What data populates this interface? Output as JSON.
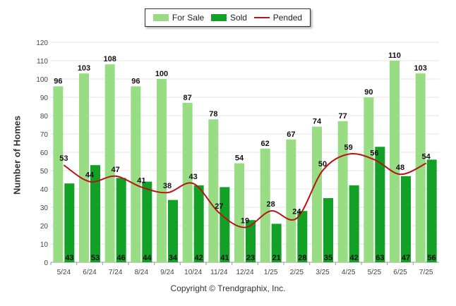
{
  "chart_data": {
    "type": "bar",
    "categories": [
      "5/24",
      "6/24",
      "7/24",
      "8/24",
      "9/24",
      "10/24",
      "11/24",
      "12/24",
      "1/25",
      "2/25",
      "3/25",
      "4/25",
      "5/25",
      "6/25",
      "7/25"
    ],
    "series": [
      {
        "name": "For Sale",
        "type": "bar",
        "color": "#98dc84",
        "values": [
          96,
          103,
          108,
          96,
          100,
          87,
          78,
          54,
          62,
          67,
          74,
          77,
          90,
          110,
          103
        ]
      },
      {
        "name": "Sold",
        "type": "bar",
        "color": "#12a126",
        "values": [
          43,
          53,
          46,
          44,
          34,
          42,
          41,
          23,
          21,
          28,
          35,
          42,
          63,
          47,
          56
        ]
      },
      {
        "name": "Pended",
        "type": "line",
        "color": "#b81414",
        "values": [
          53,
          44,
          47,
          41,
          38,
          43,
          27,
          19,
          28,
          24,
          50,
          59,
          56,
          48,
          54
        ]
      }
    ],
    "ylabel": "Number of Homes",
    "xlabel": "",
    "ylim": [
      0,
      120
    ],
    "yticks": [
      0,
      10,
      20,
      30,
      40,
      50,
      60,
      70,
      80,
      90,
      100,
      110,
      120
    ],
    "grid": true,
    "legend_position": "top-center"
  },
  "footer": {
    "copyright": "Copyright © Trendgraphix, Inc."
  }
}
